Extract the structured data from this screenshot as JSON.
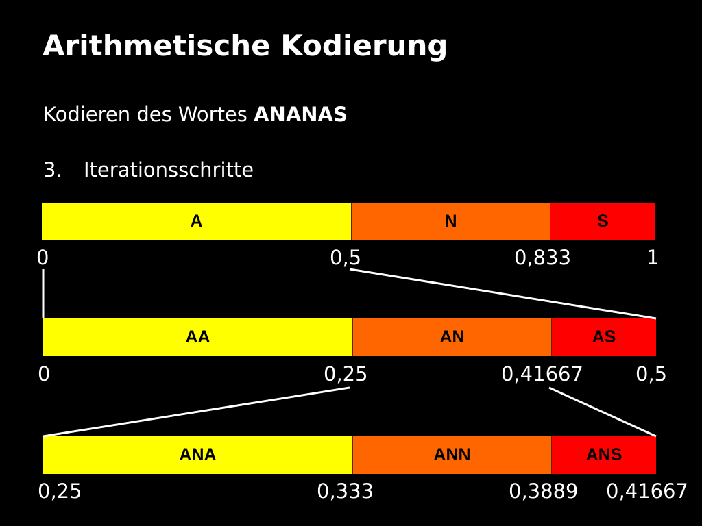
{
  "title": "Arithmetische Kodierung",
  "subtitle": {
    "prefix": "Kodieren des Wortes",
    "word": "ANANAS"
  },
  "step": {
    "number": "3.",
    "label": "Iterationsschritte"
  },
  "colors": {
    "A": "#ffff00",
    "N": "#ff6600",
    "S": "#ff0000"
  },
  "rows": [
    {
      "interval": [
        0,
        1
      ],
      "segments": [
        {
          "label": "A",
          "symbol": "A",
          "range": [
            0,
            0.5
          ]
        },
        {
          "label": "N",
          "symbol": "N",
          "range": [
            0.5,
            0.833
          ]
        },
        {
          "label": "S",
          "symbol": "S",
          "range": [
            0.833,
            1
          ]
        }
      ],
      "ticks": [
        "0",
        "0,5",
        "0,833",
        "1"
      ]
    },
    {
      "interval": [
        0,
        0.5
      ],
      "segments": [
        {
          "label": "AA",
          "symbol": "A",
          "range": [
            0,
            0.25
          ]
        },
        {
          "label": "AN",
          "symbol": "N",
          "range": [
            0.25,
            0.41667
          ]
        },
        {
          "label": "AS",
          "symbol": "S",
          "range": [
            0.41667,
            0.5
          ]
        }
      ],
      "ticks": [
        "0",
        "0,25",
        "0,41667",
        "0,5"
      ]
    },
    {
      "interval": [
        0.25,
        0.41667
      ],
      "segments": [
        {
          "label": "ANA",
          "symbol": "A",
          "range": [
            0.25,
            0.333
          ]
        },
        {
          "label": "ANN",
          "symbol": "N",
          "range": [
            0.333,
            0.3889
          ]
        },
        {
          "label": "ANS",
          "symbol": "S",
          "range": [
            0.3889,
            0.41667
          ]
        }
      ],
      "ticks": [
        "0,25",
        "0,333",
        "0,3889",
        "0,41667"
      ]
    }
  ]
}
